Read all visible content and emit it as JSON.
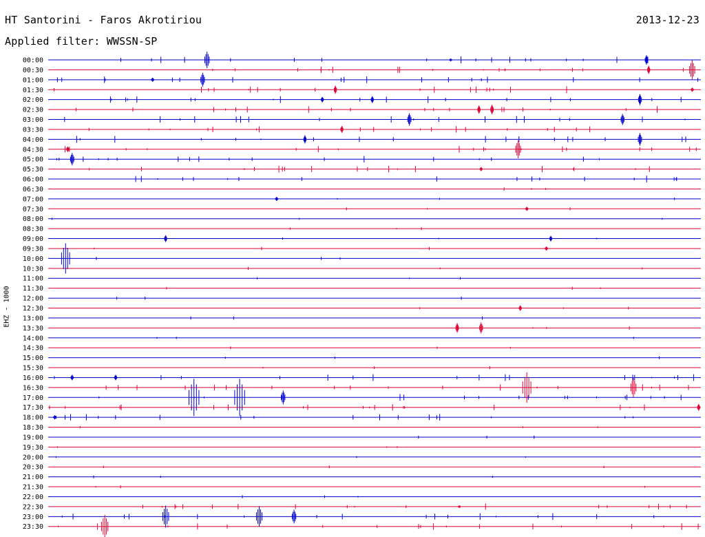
{
  "header": {
    "station": "HT Santorini - Faros Akrotiriou",
    "filter": "Applied filter: WWSSN-SP",
    "date": "2013-12-23",
    "channel": "EHZ - 1000"
  },
  "colors": {
    "even_row": "#0000cc",
    "odd_row": "#dd0033"
  },
  "chart_data": {
    "type": "line",
    "title": "HT Santorini - Faros Akrotiriou",
    "subtitle": "Applied filter: WWSSN-SP",
    "ylabel": "EHZ - 1000",
    "rows": [
      "00:00",
      "00:30",
      "01:00",
      "01:30",
      "02:00",
      "02:30",
      "03:00",
      "03:30",
      "04:00",
      "04:30",
      "05:00",
      "05:30",
      "06:00",
      "06:30",
      "07:00",
      "07:30",
      "08:00",
      "08:30",
      "09:00",
      "09:30",
      "10:00",
      "10:30",
      "11:00",
      "11:30",
      "12:00",
      "12:30",
      "13:00",
      "13:30",
      "14:00",
      "14:30",
      "15:00",
      "15:30",
      "16:00",
      "16:30",
      "17:00",
      "17:30",
      "18:00",
      "18:30",
      "19:00",
      "19:30",
      "20:00",
      "20:30",
      "21:00",
      "21:30",
      "22:00",
      "22:30",
      "23:00",
      "23:30"
    ],
    "x_unit": "minutes into row (0-30)",
    "events": [
      {
        "row": 0,
        "t": 7.3,
        "amp": 12
      },
      {
        "row": 0,
        "t": 18.5,
        "amp": 2
      },
      {
        "row": 0,
        "t": 27.5,
        "amp": 7
      },
      {
        "row": 1,
        "t": 27.6,
        "amp": 6
      },
      {
        "row": 1,
        "t": 29.6,
        "amp": 14
      },
      {
        "row": 2,
        "t": 7.1,
        "amp": 10
      },
      {
        "row": 2,
        "t": 4.8,
        "amp": 3
      },
      {
        "row": 3,
        "t": 13.2,
        "amp": 6
      },
      {
        "row": 3,
        "t": 29.6,
        "amp": 3
      },
      {
        "row": 4,
        "t": 14.9,
        "amp": 5
      },
      {
        "row": 4,
        "t": 12.6,
        "amp": 4
      },
      {
        "row": 4,
        "t": 27.2,
        "amp": 8
      },
      {
        "row": 5,
        "t": 20.4,
        "amp": 7
      },
      {
        "row": 5,
        "t": 19.8,
        "amp": 6
      },
      {
        "row": 6,
        "t": 16.6,
        "amp": 9
      },
      {
        "row": 6,
        "t": 26.4,
        "amp": 8
      },
      {
        "row": 7,
        "t": 13.5,
        "amp": 5
      },
      {
        "row": 8,
        "t": 27.2,
        "amp": 9
      },
      {
        "row": 8,
        "t": 11.8,
        "amp": 6
      },
      {
        "row": 9,
        "t": 21.6,
        "amp": 13
      },
      {
        "row": 9,
        "t": 0.9,
        "amp": 4
      },
      {
        "row": 10,
        "t": 1.1,
        "amp": 9
      },
      {
        "row": 11,
        "t": 19.9,
        "amp": 3
      },
      {
        "row": 14,
        "t": 10.5,
        "amp": 3
      },
      {
        "row": 15,
        "t": 22.0,
        "amp": 3
      },
      {
        "row": 18,
        "t": 5.4,
        "amp": 5
      },
      {
        "row": 18,
        "t": 23.1,
        "amp": 4
      },
      {
        "row": 19,
        "t": 22.9,
        "amp": 3
      },
      {
        "row": 20,
        "t": 0.8,
        "amp": 22
      },
      {
        "row": 25,
        "t": 21.7,
        "amp": 4
      },
      {
        "row": 27,
        "t": 18.8,
        "amp": 7
      },
      {
        "row": 27,
        "t": 19.9,
        "amp": 8
      },
      {
        "row": 32,
        "t": 1.1,
        "amp": 4
      },
      {
        "row": 32,
        "t": 3.1,
        "amp": 4
      },
      {
        "row": 33,
        "t": 22.0,
        "amp": 22
      },
      {
        "row": 33,
        "t": 26.9,
        "amp": 14
      },
      {
        "row": 34,
        "t": 6.7,
        "amp": 27
      },
      {
        "row": 34,
        "t": 8.8,
        "amp": 27
      },
      {
        "row": 34,
        "t": 10.8,
        "amp": 10
      },
      {
        "row": 35,
        "t": 29.9,
        "amp": 5
      },
      {
        "row": 36,
        "t": 0.3,
        "amp": 3
      },
      {
        "row": 45,
        "t": 18.9,
        "amp": 2
      },
      {
        "row": 46,
        "t": 5.4,
        "amp": 16
      },
      {
        "row": 46,
        "t": 9.7,
        "amp": 15
      },
      {
        "row": 46,
        "t": 11.3,
        "amp": 10
      },
      {
        "row": 47,
        "t": 2.6,
        "amp": 17
      }
    ]
  }
}
